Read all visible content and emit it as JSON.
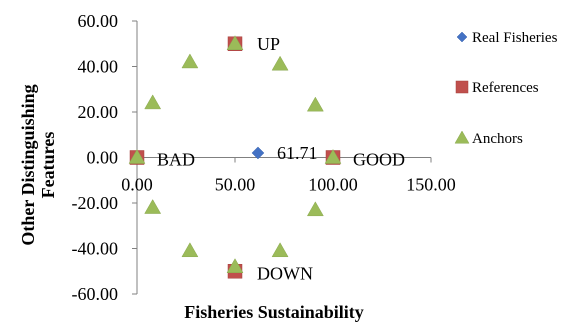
{
  "chart_data": {
    "type": "scatter",
    "xlabel": "Fisheries Sustainability",
    "ylabel_lines": [
      "Other Distinguishing",
      "Features"
    ],
    "xlim": [
      0,
      150
    ],
    "ylim": [
      -60,
      60
    ],
    "x_ticks": [
      "0.00",
      "50.00",
      "100.00",
      "150.00"
    ],
    "y_ticks": [
      "60.00",
      "40.00",
      "20.00",
      "0.00",
      "-20.00",
      "-40.00",
      "-60.00"
    ],
    "grid": false,
    "legend_position": "right",
    "series": [
      {
        "name": "Real Fisheries",
        "marker": "diamond",
        "color": "#4472C4",
        "points": [
          {
            "x": 61.71,
            "y": 2
          }
        ]
      },
      {
        "name": "References",
        "marker": "square",
        "color": "#C0504D",
        "points": [
          {
            "x": 0,
            "y": 0
          },
          {
            "x": 100,
            "y": 0
          },
          {
            "x": 50,
            "y": 50
          },
          {
            "x": 50,
            "y": -50
          }
        ]
      },
      {
        "name": "Anchors",
        "marker": "triangle",
        "color": "#9BBB59",
        "points": [
          {
            "x": 0,
            "y": 0
          },
          {
            "x": 8,
            "y": 24
          },
          {
            "x": 27,
            "y": 42
          },
          {
            "x": 50,
            "y": 50
          },
          {
            "x": 73,
            "y": 41
          },
          {
            "x": 91,
            "y": 23
          },
          {
            "x": 100,
            "y": 0
          },
          {
            "x": 8,
            "y": -22
          },
          {
            "x": 27,
            "y": -41
          },
          {
            "x": 50,
            "y": -48
          },
          {
            "x": 73,
            "y": -41
          },
          {
            "x": 91,
            "y": -23
          }
        ]
      }
    ],
    "annotations": [
      {
        "text": "UP",
        "x": 50,
        "y": 50
      },
      {
        "text": "DOWN",
        "x": 50,
        "y": -50
      },
      {
        "text": "BAD",
        "x": 0,
        "y": 0
      },
      {
        "text": "GOOD",
        "x": 100,
        "y": 0
      },
      {
        "text": "61.71",
        "x": 61.71,
        "y": 2
      }
    ]
  }
}
